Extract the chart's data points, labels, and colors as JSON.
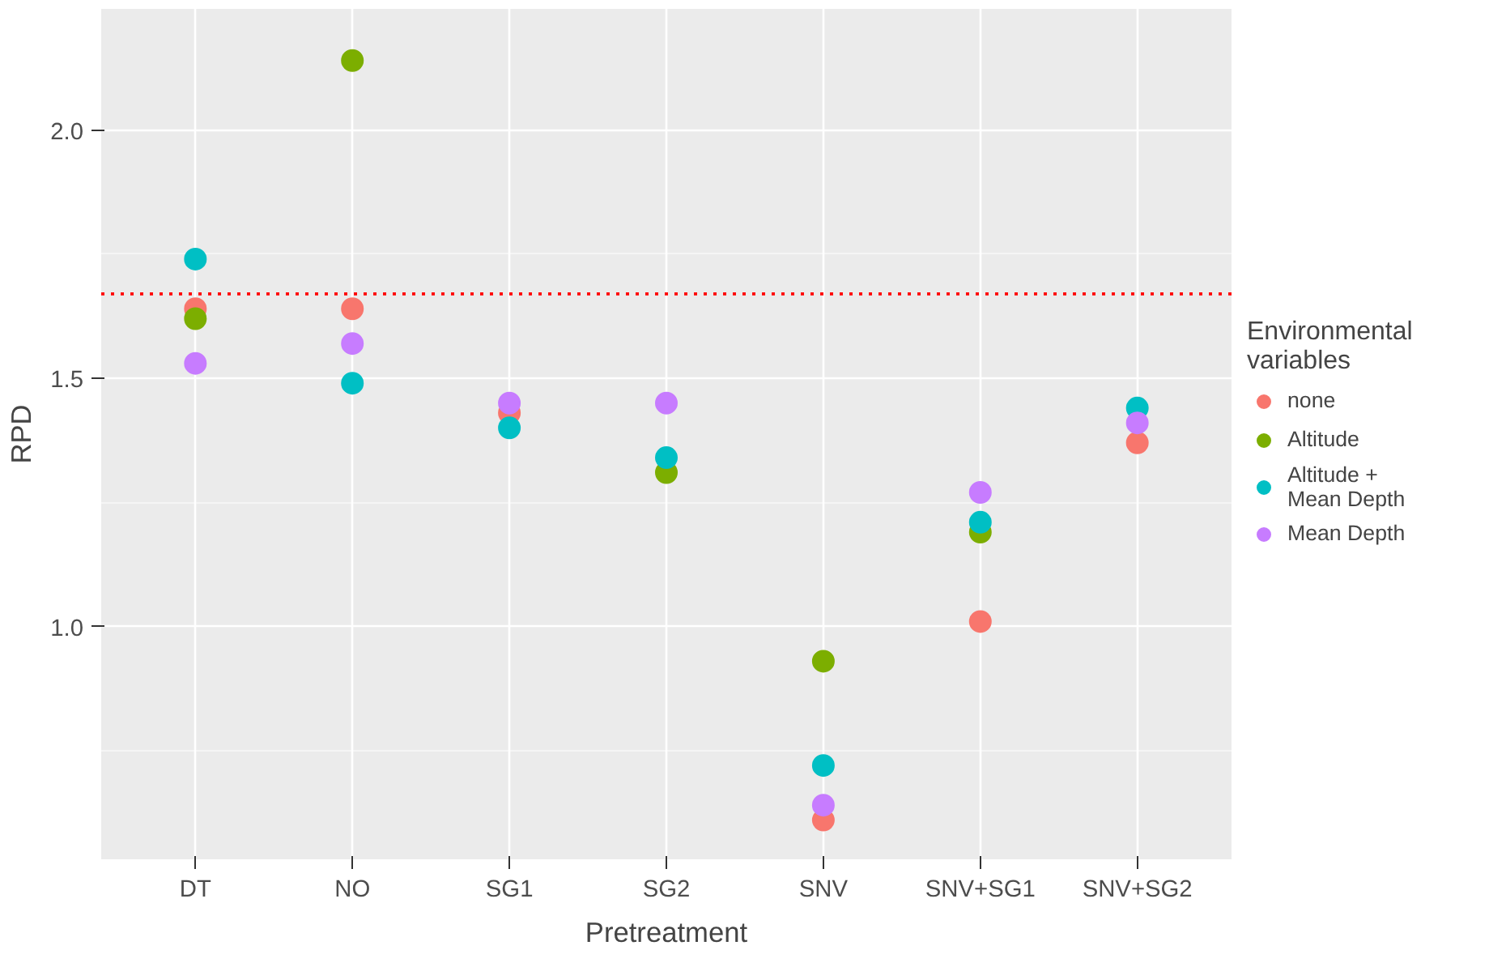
{
  "chart_data": {
    "type": "scatter",
    "xlabel": "Pretreatment",
    "ylabel": "RPD",
    "legend_title": "Environmental variables",
    "categories": [
      "DT",
      "NO",
      "SG1",
      "SG2",
      "SNV",
      "SNV+SG1",
      "SNV+SG2"
    ],
    "series": [
      {
        "name": "none",
        "color": "#f8766d",
        "values": [
          1.64,
          1.64,
          1.43,
          null,
          0.61,
          1.01,
          1.37
        ]
      },
      {
        "name": "Altitude",
        "color": "#7cae00",
        "values": [
          1.62,
          2.14,
          null,
          1.31,
          0.93,
          1.19,
          null
        ]
      },
      {
        "name": "Altitude + Mean Depth",
        "color": "#00bfc4",
        "values": [
          1.74,
          1.49,
          1.4,
          1.34,
          0.72,
          1.21,
          1.44
        ]
      },
      {
        "name": "Mean Depth",
        "color": "#c77cff",
        "values": [
          1.53,
          1.57,
          1.45,
          1.45,
          0.64,
          1.27,
          1.41
        ]
      }
    ],
    "ylim": [
      0.531,
      2.244
    ],
    "yticks": [
      {
        "value": 1.0,
        "label": "1.0"
      },
      {
        "value": 1.5,
        "label": "1.5"
      },
      {
        "value": 2.0,
        "label": "2.0"
      }
    ],
    "ref_lines": [
      {
        "axis": "y",
        "value": 1.67,
        "color": "#ff0000",
        "line_style": "dotted"
      }
    ],
    "grid": true,
    "legend": "right",
    "marker": "circle"
  }
}
